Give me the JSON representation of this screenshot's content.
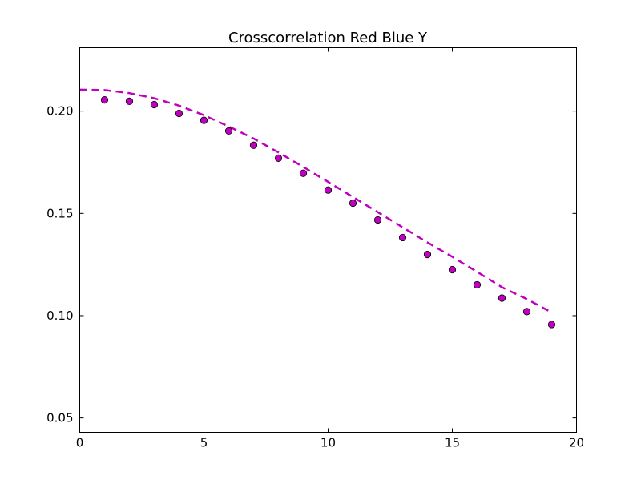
{
  "chart_data": {
    "type": "scatter",
    "title": "Crosscorrelation Red Blue Y",
    "xlabel": "",
    "ylabel": "",
    "xlim": [
      0,
      20
    ],
    "ylim": [
      0.043,
      0.231
    ],
    "grid": false,
    "x_ticks": [
      0,
      5,
      10,
      15,
      20
    ],
    "x_tick_labels": [
      "0",
      "5",
      "10",
      "15",
      "20"
    ],
    "y_ticks": [
      0.05,
      0.1,
      0.15,
      0.2
    ],
    "y_tick_labels": [
      "0.05",
      "0.10",
      "0.15",
      "0.20"
    ],
    "color": "#bf00bf",
    "series": [
      {
        "kind": "points",
        "x": [
          1,
          2,
          3,
          4,
          5,
          6,
          7,
          8,
          9,
          10,
          11,
          12,
          13,
          14,
          15,
          16,
          17,
          18,
          19
        ],
        "y": [
          0.2055,
          0.2048,
          0.2032,
          0.1989,
          0.1955,
          0.1903,
          0.1833,
          0.177,
          0.1696,
          0.1614,
          0.155,
          0.1468,
          0.1382,
          0.1299,
          0.1225,
          0.1151,
          0.1086,
          0.102,
          0.0957
        ]
      },
      {
        "kind": "dashed-line",
        "x": [
          0,
          1,
          2,
          3,
          4,
          5,
          6,
          7,
          8,
          9,
          10,
          11,
          12,
          13,
          14,
          15,
          16,
          17,
          18,
          19
        ],
        "y": [
          0.2105,
          0.2103,
          0.2088,
          0.2063,
          0.2027,
          0.198,
          0.1925,
          0.1866,
          0.1798,
          0.1727,
          0.1654,
          0.158,
          0.1506,
          0.1432,
          0.1358,
          0.1288,
          0.1214,
          0.1139,
          0.1081,
          0.1016
        ]
      }
    ]
  }
}
